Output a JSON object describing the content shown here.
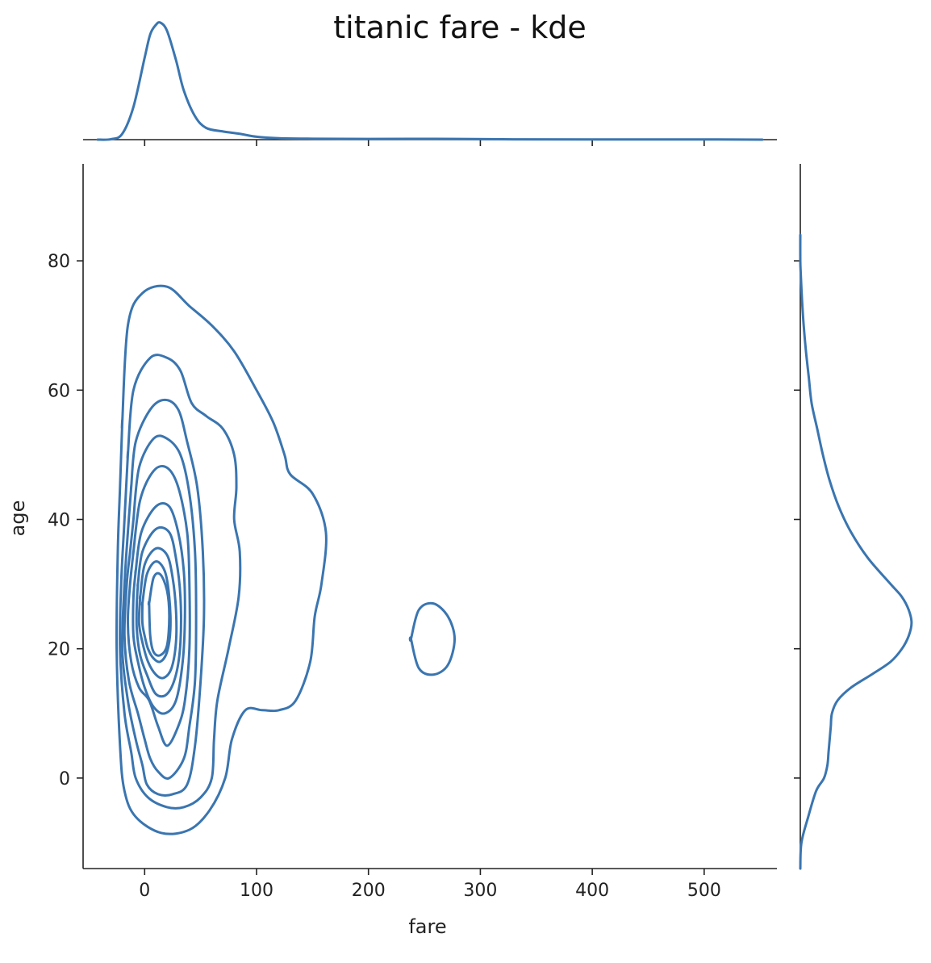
{
  "chart_data": {
    "type": "kde",
    "title": "titanic fare - kde",
    "xlabel": "fare",
    "ylabel": "age",
    "xlim": [
      -55,
      565
    ],
    "ylim": [
      -14,
      95
    ],
    "xticks": [
      0,
      100,
      200,
      300,
      400,
      500
    ],
    "yticks": [
      0,
      20,
      40,
      60,
      80
    ],
    "color": "#3a75b0",
    "marginal_x": {
      "x": [
        -42,
        -30,
        -20,
        -10,
        0,
        5,
        10,
        14,
        20,
        28,
        35,
        45,
        55,
        70,
        85,
        100,
        120,
        150,
        200,
        260,
        320,
        400,
        500,
        552
      ],
      "density": [
        0.0,
        0.004,
        0.05,
        0.28,
        0.7,
        0.9,
        0.98,
        1.0,
        0.93,
        0.68,
        0.42,
        0.2,
        0.1,
        0.07,
        0.05,
        0.025,
        0.012,
        0.008,
        0.006,
        0.007,
        0.003,
        0.002,
        0.002,
        0.0
      ]
    },
    "marginal_y": {
      "y": [
        -14,
        -10,
        -6,
        -2,
        0,
        2,
        4,
        6,
        8,
        10,
        12,
        14,
        16,
        18,
        20,
        22,
        24,
        26,
        28,
        30,
        34,
        38,
        42,
        46,
        50,
        54,
        58,
        62,
        66,
        70,
        74,
        78,
        80,
        84
      ],
      "density": [
        0.0,
        0.01,
        0.07,
        0.14,
        0.21,
        0.24,
        0.25,
        0.26,
        0.27,
        0.28,
        0.33,
        0.45,
        0.63,
        0.8,
        0.9,
        0.96,
        0.985,
        0.96,
        0.9,
        0.8,
        0.6,
        0.45,
        0.34,
        0.26,
        0.2,
        0.15,
        0.1,
        0.075,
        0.05,
        0.03,
        0.015,
        0.004,
        0.0,
        0.0
      ]
    },
    "contours": [
      [
        [
          -20,
          55
        ],
        [
          -15,
          70
        ],
        [
          -2,
          75
        ],
        [
          20,
          76
        ],
        [
          40,
          73
        ],
        [
          60,
          70
        ],
        [
          80,
          66
        ],
        [
          100,
          60
        ],
        [
          115,
          55
        ],
        [
          125,
          50
        ],
        [
          130,
          47
        ],
        [
          150,
          44
        ],
        [
          162,
          38
        ],
        [
          158,
          30
        ],
        [
          152,
          25
        ],
        [
          148,
          18
        ],
        [
          135,
          12
        ],
        [
          120,
          10.5
        ],
        [
          105,
          10.5
        ],
        [
          90,
          10.5
        ],
        [
          78,
          6
        ],
        [
          72,
          0
        ],
        [
          58,
          -5
        ],
        [
          40,
          -8
        ],
        [
          15,
          -8.5
        ],
        [
          -8,
          -6
        ],
        [
          -18,
          -2
        ],
        [
          -22,
          5
        ],
        [
          -25,
          20
        ],
        [
          -24,
          35
        ],
        [
          -22,
          45
        ],
        [
          -20,
          55
        ]
      ],
      [
        [
          -15,
          50
        ],
        [
          -10,
          60
        ],
        [
          5,
          65
        ],
        [
          20,
          65
        ],
        [
          32,
          63
        ],
        [
          42,
          58
        ],
        [
          55,
          56
        ],
        [
          70,
          54
        ],
        [
          80,
          50
        ],
        [
          82,
          45
        ],
        [
          80,
          40
        ],
        [
          85,
          35
        ],
        [
          84,
          28
        ],
        [
          75,
          20
        ],
        [
          65,
          12
        ],
        [
          62,
          6
        ],
        [
          60,
          0
        ],
        [
          50,
          -3
        ],
        [
          35,
          -4.5
        ],
        [
          20,
          -4.5
        ],
        [
          3,
          -3
        ],
        [
          -8,
          0
        ],
        [
          -12,
          4
        ],
        [
          -18,
          10
        ],
        [
          -22,
          20
        ],
        [
          -21,
          30
        ],
        [
          -18,
          40
        ],
        [
          -15,
          50
        ]
      ],
      [
        [
          -12,
          45
        ],
        [
          -8,
          52
        ],
        [
          5,
          57
        ],
        [
          18,
          58.5
        ],
        [
          30,
          57
        ],
        [
          38,
          52
        ],
        [
          47,
          45
        ],
        [
          52,
          35
        ],
        [
          53,
          25
        ],
        [
          50,
          15
        ],
        [
          45,
          5
        ],
        [
          38,
          -1
        ],
        [
          25,
          -2.5
        ],
        [
          12,
          -2.5
        ],
        [
          2,
          -1
        ],
        [
          -2,
          2
        ],
        [
          -8,
          6
        ],
        [
          -15,
          12
        ],
        [
          -20,
          20
        ],
        [
          -18,
          30
        ],
        [
          -15,
          38
        ],
        [
          -12,
          45
        ]
      ],
      [
        [
          -10,
          40
        ],
        [
          -5,
          48
        ],
        [
          8,
          52.5
        ],
        [
          20,
          52.5
        ],
        [
          32,
          50
        ],
        [
          40,
          44
        ],
        [
          45,
          35
        ],
        [
          46,
          25
        ],
        [
          45,
          15
        ],
        [
          40,
          8
        ],
        [
          35,
          3
        ],
        [
          22,
          0
        ],
        [
          12,
          1
        ],
        [
          5,
          3
        ],
        [
          0,
          6
        ],
        [
          -6,
          10
        ],
        [
          -14,
          15
        ],
        [
          -18,
          22
        ],
        [
          -16,
          30
        ],
        [
          -13,
          35
        ],
        [
          -10,
          40
        ]
      ],
      [
        [
          -10,
          35
        ],
        [
          -4,
          43
        ],
        [
          8,
          47.5
        ],
        [
          20,
          48
        ],
        [
          30,
          45
        ],
        [
          38,
          38
        ],
        [
          40,
          30
        ],
        [
          40,
          20
        ],
        [
          36,
          12
        ],
        [
          30,
          8
        ],
        [
          20,
          5
        ],
        [
          12,
          8
        ],
        [
          4,
          12
        ],
        [
          -5,
          14
        ],
        [
          -12,
          18
        ],
        [
          -15,
          24
        ],
        [
          -13,
          30
        ],
        [
          -10,
          35
        ]
      ],
      [
        [
          -8,
          32
        ],
        [
          -3,
          38
        ],
        [
          10,
          42
        ],
        [
          22,
          42
        ],
        [
          30,
          38
        ],
        [
          35,
          32
        ],
        [
          36,
          25
        ],
        [
          34,
          18
        ],
        [
          28,
          12
        ],
        [
          18,
          10
        ],
        [
          8,
          11
        ],
        [
          0,
          14
        ],
        [
          -6,
          18
        ],
        [
          -10,
          22
        ],
        [
          -10,
          28
        ],
        [
          -8,
          32
        ]
      ],
      [
        [
          -6,
          30
        ],
        [
          -2,
          35
        ],
        [
          10,
          38.5
        ],
        [
          22,
          38
        ],
        [
          28,
          34
        ],
        [
          32,
          28
        ],
        [
          32,
          21
        ],
        [
          28,
          16
        ],
        [
          20,
          13
        ],
        [
          10,
          13
        ],
        [
          2,
          16
        ],
        [
          -4,
          19
        ],
        [
          -7,
          23
        ],
        [
          -7,
          27
        ],
        [
          -6,
          30
        ]
      ],
      [
        [
          -4,
          28
        ],
        [
          0,
          33
        ],
        [
          10,
          35.5
        ],
        [
          20,
          34.5
        ],
        [
          25,
          31
        ],
        [
          28,
          26
        ],
        [
          28,
          21
        ],
        [
          24,
          17
        ],
        [
          17,
          15.5
        ],
        [
          10,
          16
        ],
        [
          3,
          18
        ],
        [
          -2,
          21
        ],
        [
          -5,
          24
        ],
        [
          -4,
          28
        ]
      ],
      [
        [
          -2,
          27
        ],
        [
          2,
          31.5
        ],
        [
          10,
          33.5
        ],
        [
          18,
          32
        ],
        [
          22,
          28
        ],
        [
          23,
          23
        ],
        [
          20,
          19.5
        ],
        [
          14,
          18
        ],
        [
          8,
          18.5
        ],
        [
          3,
          20
        ],
        [
          0,
          22
        ],
        [
          -2,
          24
        ],
        [
          -2,
          27
        ]
      ],
      [
        [
          4,
          27
        ],
        [
          8,
          31
        ],
        [
          14,
          31.5
        ],
        [
          20,
          29
        ],
        [
          22,
          25
        ],
        [
          20,
          20.5
        ],
        [
          14,
          19
        ],
        [
          8,
          19.5
        ],
        [
          5,
          22
        ],
        [
          4,
          27
        ]
      ],
      [
        [
          238,
          21.5
        ],
        [
          245,
          26
        ],
        [
          258,
          27
        ],
        [
          271,
          25
        ],
        [
          277,
          21.5
        ],
        [
          271,
          17.5
        ],
        [
          258,
          16
        ],
        [
          245,
          17
        ],
        [
          238,
          21.5
        ]
      ]
    ]
  }
}
